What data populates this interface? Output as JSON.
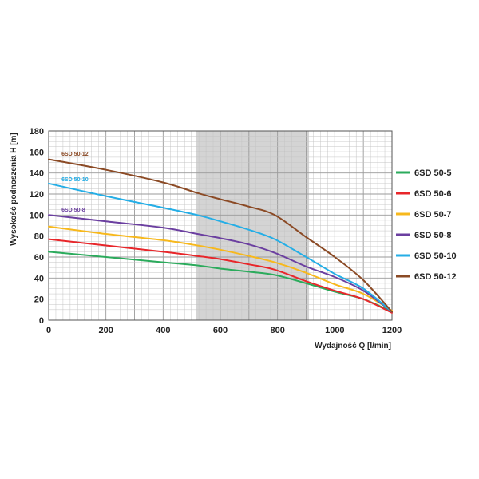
{
  "chart_data": {
    "type": "line",
    "xlabel": "Wydajność Q [l/min]",
    "ylabel": "Wysokość podnoszenia H [m]",
    "xlim": [
      0,
      1200
    ],
    "ylim": [
      0,
      180
    ],
    "xticks": [
      0,
      200,
      400,
      600,
      800,
      1000,
      1200
    ],
    "yticks": [
      0,
      20,
      40,
      60,
      80,
      100,
      120,
      140,
      160,
      180
    ],
    "grid": true,
    "legend_position": "right",
    "shaded_region": {
      "x_from": 515,
      "x_to": 910,
      "color": "#d4d4d4"
    },
    "series": [
      {
        "name": "6SD 50-5",
        "color": "#2bab5c",
        "x": [
          0,
          200,
          400,
          520,
          600,
          700,
          790,
          900,
          1000,
          1100,
          1200
        ],
        "y": [
          65,
          60,
          55,
          52,
          49,
          46,
          43,
          35,
          27,
          20,
          8
        ]
      },
      {
        "name": "6SD 50-6",
        "color": "#e8262a",
        "x": [
          0,
          200,
          400,
          520,
          600,
          700,
          790,
          900,
          1000,
          1100,
          1200
        ],
        "y": [
          77,
          71,
          65,
          61,
          58,
          53,
          48,
          37,
          28,
          20,
          7
        ]
      },
      {
        "name": "6SD 50-7",
        "color": "#f7b81c",
        "x": [
          0,
          200,
          400,
          520,
          600,
          700,
          790,
          900,
          1000,
          1100,
          1200
        ],
        "y": [
          89,
          82,
          76,
          71,
          67,
          61,
          55,
          45,
          34,
          25,
          9
        ]
      },
      {
        "name": "6SD 50-8",
        "color": "#6b3fa0",
        "x": [
          0,
          200,
          400,
          520,
          600,
          700,
          790,
          900,
          1000,
          1100,
          1200
        ],
        "y": [
          100,
          94,
          88,
          82,
          78,
          72,
          64,
          51,
          41,
          28,
          8
        ]
      },
      {
        "name": "6SD 50-10",
        "color": "#25aee6",
        "x": [
          0,
          200,
          400,
          520,
          600,
          700,
          790,
          900,
          1000,
          1100,
          1200
        ],
        "y": [
          130,
          118,
          107,
          100,
          94,
          86,
          77,
          60,
          44,
          30,
          8
        ]
      },
      {
        "name": "6SD 50-12",
        "color": "#8b4a25",
        "x": [
          0,
          200,
          400,
          520,
          600,
          700,
          790,
          900,
          1000,
          1100,
          1200
        ],
        "y": [
          153,
          143,
          131,
          121,
          115,
          108,
          100,
          79,
          60,
          38,
          8
        ]
      }
    ],
    "curve_labels": [
      {
        "text": "6SD 50-12",
        "series": 5,
        "x": 45,
        "y": 154
      },
      {
        "text": "6SD 50-10",
        "series": 4,
        "x": 45,
        "y": 130
      },
      {
        "text": "6SD 50-8",
        "series": 3,
        "x": 45,
        "y": 101
      }
    ]
  }
}
